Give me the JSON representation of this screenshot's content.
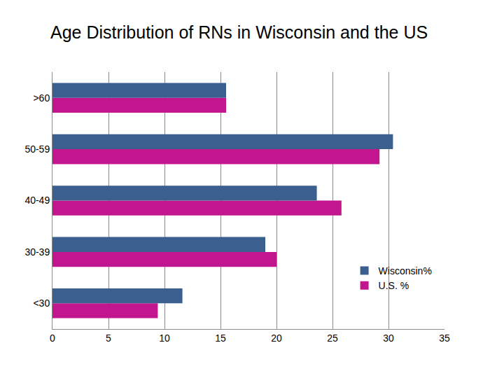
{
  "chart_data": {
    "type": "bar",
    "orientation": "horizontal",
    "title": "Age Distribution of RNs in Wisconsin and the US",
    "categories": [
      "<30",
      "30-39",
      "40-49",
      "50-59",
      ">60"
    ],
    "series": [
      {
        "name": "Wisconsin%",
        "color": "#3b6090",
        "values": [
          11.6,
          19.0,
          23.6,
          30.4,
          15.5
        ]
      },
      {
        "name": "U.S. %",
        "color": "#c2168f",
        "values": [
          9.4,
          20.0,
          25.8,
          29.2,
          15.5
        ]
      }
    ],
    "xlim": [
      0,
      35
    ],
    "xticks": [
      0,
      5,
      10,
      15,
      20,
      25,
      30,
      35
    ],
    "grid": true,
    "legend": "lower right"
  }
}
